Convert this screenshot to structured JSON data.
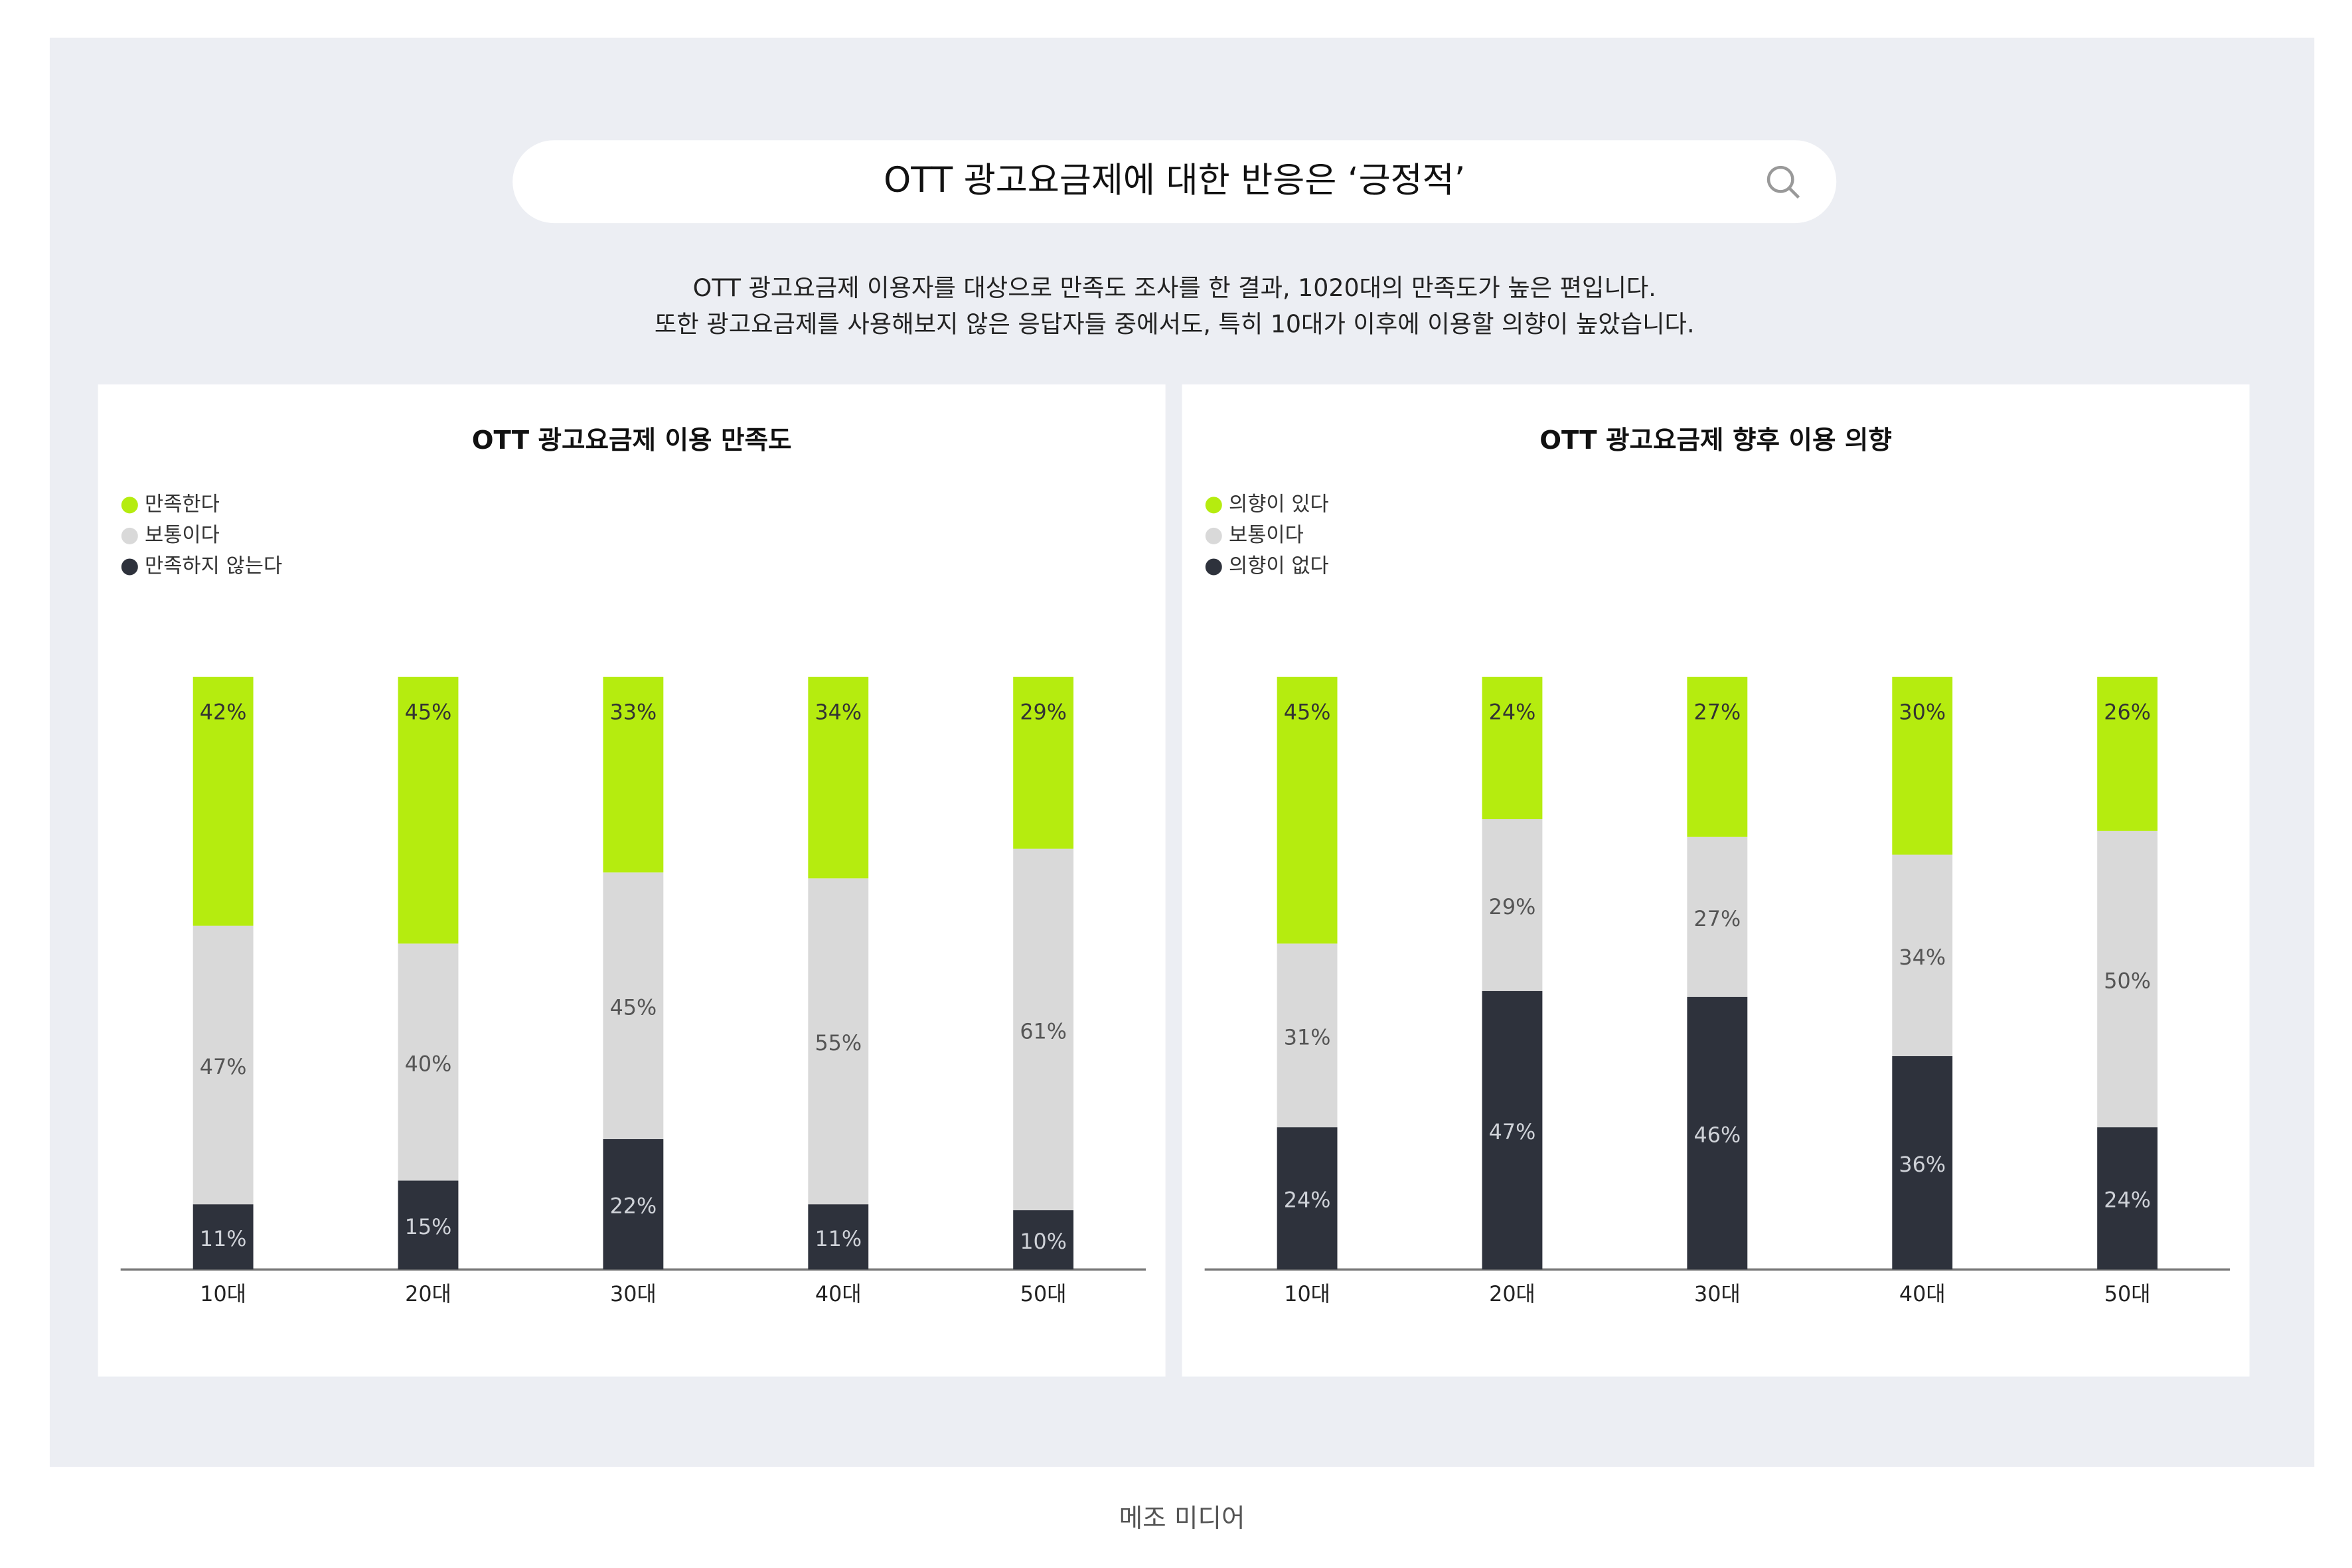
{
  "header": {
    "title": "OTT 광고요금제에 대한 반응은 ‘긍정적’",
    "description": [
      "OTT 광고요금제 이용자를 대상으로 만족도 조사를 한 결과, 1020대의 만족도가 높은 편입니다.",
      "또한 광고요금제를 사용해보지 않은 응답자들 중에서도, 특히 10대가 이후에 이용할 의향이 높았습니다."
    ]
  },
  "chart_data": [
    {
      "type": "bar",
      "stacked": true,
      "title": "OTT 광고요금제 이용 만족도",
      "categories": [
        "10대",
        "20대",
        "30대",
        "40대",
        "50대"
      ],
      "ylim": [
        0,
        100
      ],
      "series": [
        {
          "name": "만족하지 않는다",
          "color": "#2e323c",
          "values": [
            11,
            15,
            22,
            11,
            10
          ],
          "value_labels": [
            "11%",
            "15%",
            "22%",
            "11%",
            "10%"
          ]
        },
        {
          "name": "보통이다",
          "color": "#d9d9d9",
          "values": [
            47,
            40,
            45,
            55,
            61
          ],
          "value_labels": [
            "47%",
            "40%",
            "45%",
            "55%",
            "61%"
          ]
        },
        {
          "name": "만족한다",
          "color": "#b5ec0f",
          "values": [
            42,
            45,
            33,
            34,
            29
          ],
          "value_labels": [
            "42%",
            "45%",
            "33%",
            "34%",
            "29%"
          ]
        }
      ]
    },
    {
      "type": "bar",
      "stacked": true,
      "title": "OTT 광고요금제 향후 이용 의향",
      "categories": [
        "10대",
        "20대",
        "30대",
        "40대",
        "50대"
      ],
      "ylim": [
        0,
        100
      ],
      "series": [
        {
          "name": "의향이 없다",
          "color": "#2e323c",
          "values": [
            24,
            47,
            46,
            36,
            24
          ],
          "value_labels": [
            "24%",
            "47%",
            "46%",
            "36%",
            "24%"
          ]
        },
        {
          "name": "보통이다",
          "color": "#d9d9d9",
          "values": [
            31,
            29,
            27,
            34,
            50
          ],
          "value_labels": [
            "31%",
            "29%",
            "27%",
            "34%",
            "50%"
          ]
        },
        {
          "name": "의향이 있다",
          "color": "#b5ec0f",
          "values": [
            45,
            24,
            27,
            30,
            26
          ],
          "value_labels": [
            "45%",
            "24%",
            "27%",
            "30%",
            "26%"
          ]
        }
      ]
    }
  ],
  "source": "메조 미디어"
}
